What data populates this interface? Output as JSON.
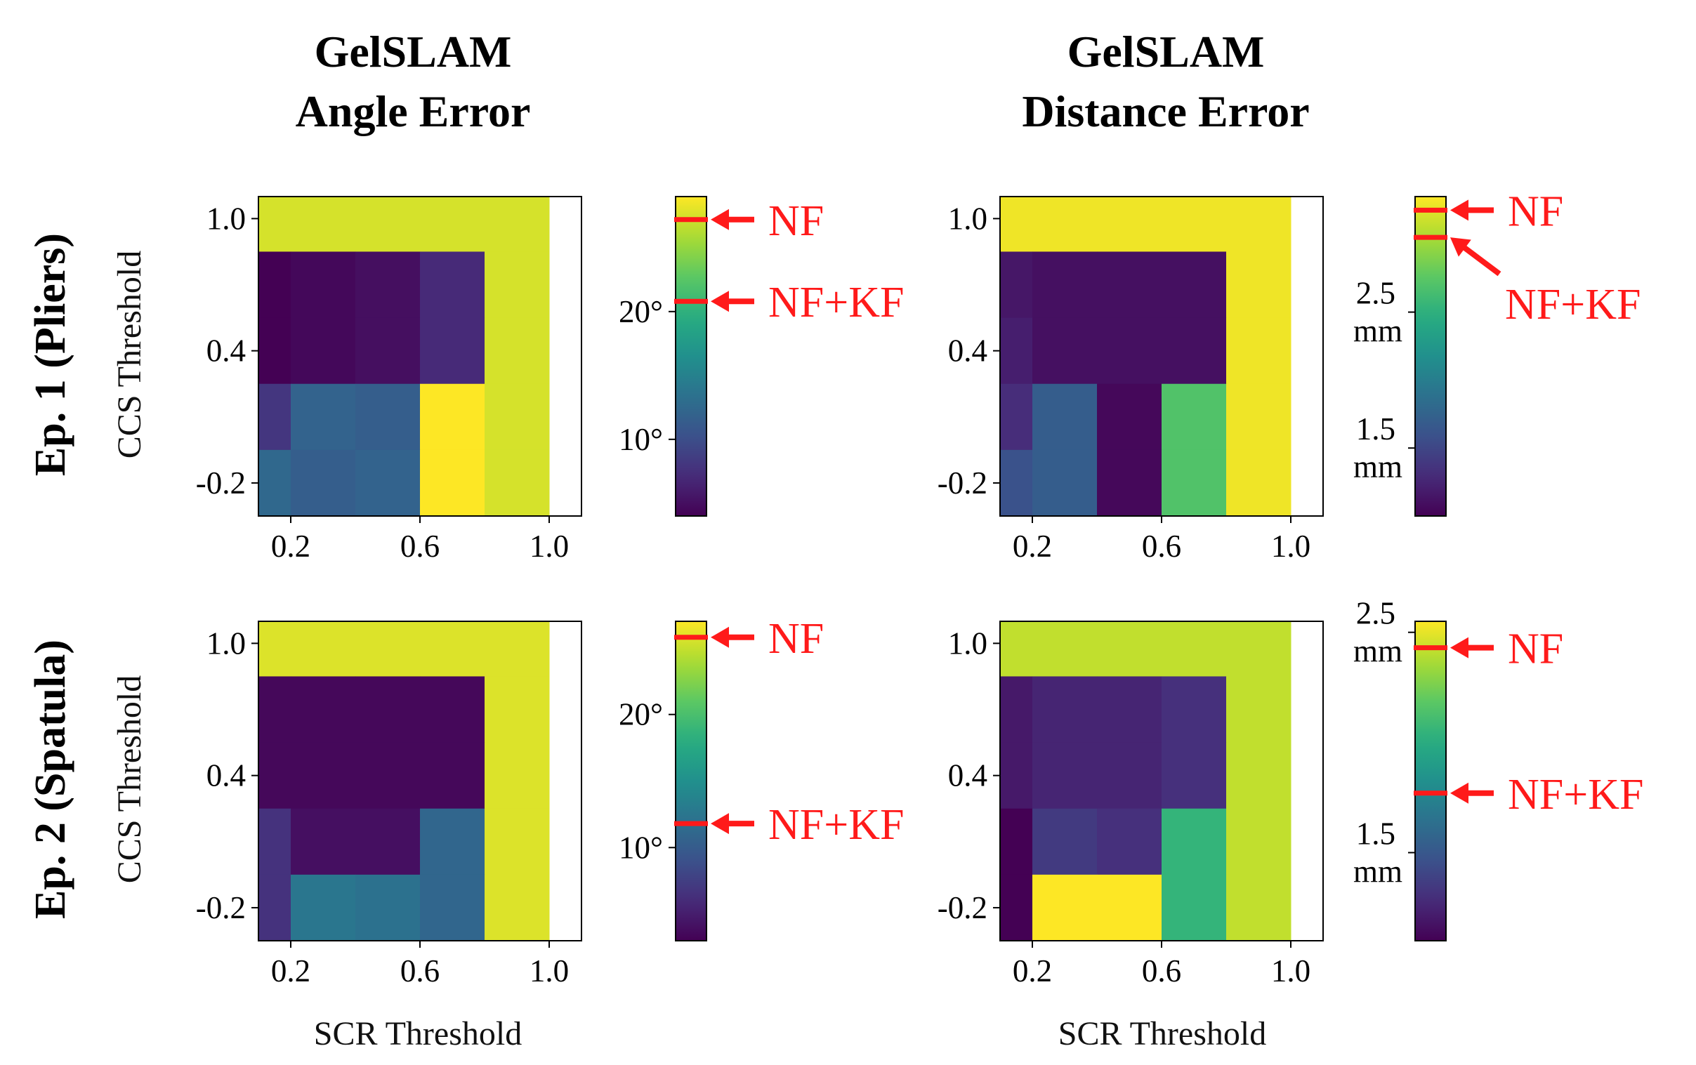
{
  "columns": [
    {
      "title_line1": "GelSLAM",
      "title_line2": "Angle Error",
      "xlabel": "SCR Threshold"
    },
    {
      "title_line1": "GelSLAM",
      "title_line2": "Distance Error",
      "xlabel": "SCR Threshold"
    }
  ],
  "rows": [
    {
      "label": "Ep. 1 (Pliers)",
      "ylabel": "CCS Threshold"
    },
    {
      "label": "Ep. 2 (Spatula)",
      "ylabel": "CCS Threshold"
    }
  ],
  "colors": {
    "marker": "#ff1a1a",
    "viridis_low": "#440154",
    "viridis_high": "#fde725"
  },
  "chart_data": [
    {
      "type": "heatmap",
      "id": "ep1-angle",
      "title": "GelSLAM Angle Error",
      "row_label": "Ep. 1 (Pliers)",
      "xlabel": "SCR Threshold",
      "ylabel": "CCS Threshold",
      "x_values": [
        0.1,
        0.3,
        0.5,
        0.7,
        0.9
      ],
      "y_values": [
        1.0,
        0.7,
        0.4,
        0.1,
        -0.2
      ],
      "x_ticks": [
        "0.2",
        "0.6",
        "1.0"
      ],
      "y_ticks": [
        "1.0",
        "0.4",
        "-0.2"
      ],
      "x_tick_values": [
        0.2,
        0.6,
        1.0
      ],
      "y_tick_values": [
        1.0,
        0.4,
        -0.2
      ],
      "xlim": [
        0.1,
        1.1
      ],
      "ylim": [
        1.1,
        -0.35
      ],
      "values": [
        [
          27.5,
          27.5,
          27.5,
          27.5,
          27.5
        ],
        [
          4.0,
          4.5,
          5.0,
          7.0,
          27.5
        ],
        [
          4.0,
          4.5,
          5.0,
          7.0,
          27.5
        ],
        [
          8.0,
          12.0,
          11.5,
          29.0,
          27.5
        ],
        [
          12.5,
          11.5,
          12.0,
          29.0,
          27.5
        ]
      ],
      "vmin": 4.0,
      "vmax": 29.0,
      "colorbar": {
        "ticks": [
          20,
          10
        ],
        "tick_labels": [
          "20°",
          "10°"
        ]
      },
      "markers": [
        {
          "label": "NF",
          "value": 27.2
        },
        {
          "label": "NF+KF",
          "value": 20.8
        }
      ]
    },
    {
      "type": "heatmap",
      "id": "ep1-distance",
      "title": "GelSLAM Distance Error",
      "row_label": "Ep. 1 (Pliers)",
      "xlabel": "SCR Threshold",
      "ylabel": "CCS Threshold",
      "x_values": [
        0.1,
        0.3,
        0.5,
        0.7,
        0.9
      ],
      "y_values": [
        1.0,
        0.7,
        0.4,
        0.1,
        -0.2
      ],
      "x_ticks": [
        "0.2",
        "0.6",
        "1.0"
      ],
      "y_ticks": [
        "1.0",
        "0.4",
        "-0.2"
      ],
      "x_tick_values": [
        0.2,
        0.6,
        1.0
      ],
      "y_tick_values": [
        1.0,
        0.4,
        -0.2
      ],
      "xlim": [
        0.1,
        1.1
      ],
      "ylim": [
        1.1,
        -0.35
      ],
      "values": [
        [
          3.3,
          3.3,
          3.3,
          3.3,
          3.3
        ],
        [
          1.15,
          1.1,
          1.1,
          1.1,
          3.3
        ],
        [
          1.2,
          1.1,
          1.1,
          1.1,
          3.3
        ],
        [
          1.3,
          1.7,
          1.05,
          2.7,
          3.3
        ],
        [
          1.6,
          1.7,
          1.05,
          2.7,
          3.3
        ]
      ],
      "vmin": 1.0,
      "vmax": 3.35,
      "colorbar": {
        "ticks": [
          2.5,
          1.5
        ],
        "tick_labels": [
          "2.5",
          "1.5"
        ],
        "unit": "mm"
      },
      "markers": [
        {
          "label": "NF",
          "value": 3.25
        },
        {
          "label": "NF+KF",
          "value": 3.05
        }
      ]
    },
    {
      "type": "heatmap",
      "id": "ep2-angle",
      "title": "GelSLAM Angle Error",
      "row_label": "Ep. 2 (Spatula)",
      "xlabel": "SCR Threshold",
      "ylabel": "CCS Threshold",
      "x_values": [
        0.1,
        0.3,
        0.5,
        0.7,
        0.9
      ],
      "y_values": [
        1.0,
        0.7,
        0.4,
        0.1,
        -0.2
      ],
      "x_ticks": [
        "0.2",
        "0.6",
        "1.0"
      ],
      "y_ticks": [
        "1.0",
        "0.4",
        "-0.2"
      ],
      "x_tick_values": [
        0.2,
        0.6,
        1.0
      ],
      "y_tick_values": [
        1.0,
        0.4,
        -0.2
      ],
      "xlim": [
        0.1,
        1.1
      ],
      "ylim": [
        1.1,
        -0.35
      ],
      "values": [
        [
          25.8,
          25.8,
          25.8,
          25.8,
          25.8
        ],
        [
          3.5,
          3.5,
          3.5,
          3.5,
          25.8
        ],
        [
          3.5,
          3.5,
          3.5,
          3.5,
          25.8
        ],
        [
          6.5,
          4.0,
          4.0,
          11.0,
          25.8
        ],
        [
          6.5,
          12.5,
          12.0,
          11.0,
          25.8
        ]
      ],
      "vmin": 3.0,
      "vmax": 27.0,
      "colorbar": {
        "ticks": [
          20,
          10
        ],
        "tick_labels": [
          "20°",
          "10°"
        ]
      },
      "markers": [
        {
          "label": "NF",
          "value": 25.8
        },
        {
          "label": "NF+KF",
          "value": 11.8
        }
      ]
    },
    {
      "type": "heatmap",
      "id": "ep2-distance",
      "title": "GelSLAM Distance Error",
      "row_label": "Ep. 2 (Spatula)",
      "xlabel": "SCR Threshold",
      "ylabel": "CCS Threshold",
      "x_values": [
        0.1,
        0.3,
        0.5,
        0.7,
        0.9
      ],
      "y_values": [
        1.0,
        0.7,
        0.4,
        0.1,
        -0.2
      ],
      "x_ticks": [
        "0.2",
        "0.6",
        "1.0"
      ],
      "y_ticks": [
        "1.0",
        "0.4",
        "-0.2"
      ],
      "x_tick_values": [
        0.2,
        0.6,
        1.0
      ],
      "y_tick_values": [
        1.0,
        0.4,
        -0.2
      ],
      "xlim": [
        0.1,
        1.1
      ],
      "ylim": [
        1.1,
        -0.35
      ],
      "values": [
        [
          2.42,
          2.42,
          2.42,
          2.42,
          2.42
        ],
        [
          1.2,
          1.25,
          1.25,
          1.3,
          2.42
        ],
        [
          1.2,
          1.25,
          1.25,
          1.3,
          2.42
        ],
        [
          1.1,
          1.35,
          1.3,
          2.05,
          2.42
        ],
        [
          1.1,
          2.55,
          2.55,
          2.05,
          2.42
        ]
      ],
      "vmin": 1.1,
      "vmax": 2.55,
      "colorbar": {
        "ticks": [
          2.5,
          1.5
        ],
        "tick_labels": [
          "2.5",
          "1.5"
        ],
        "unit": "mm"
      },
      "markers": [
        {
          "label": "NF",
          "value": 2.43
        },
        {
          "label": "NF+KF",
          "value": 1.77
        }
      ]
    }
  ]
}
